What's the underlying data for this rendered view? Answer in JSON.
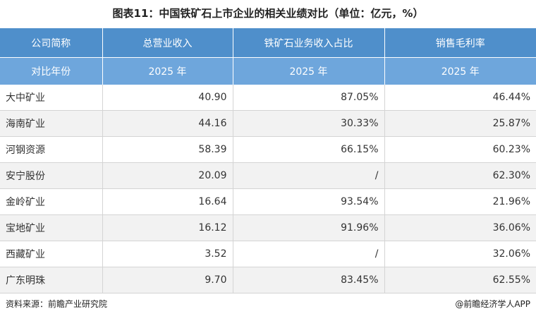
{
  "header": {
    "title": "图表11：中国铁矿石上市企业的相关业绩对比（单位：亿元，%）"
  },
  "table": {
    "columns": [
      "公司简称",
      "总营业收入",
      "铁矿石业务收入占比",
      "销售毛利率"
    ],
    "subheader": [
      "对比年份",
      "2025 年",
      "2025 年",
      "2025 年"
    ],
    "rows": [
      [
        "大中矿业",
        "40.90",
        "87.05%",
        "46.44%"
      ],
      [
        "海南矿业",
        "44.16",
        "30.33%",
        "25.87%"
      ],
      [
        "河钢资源",
        "58.39",
        "66.15%",
        "60.23%"
      ],
      [
        "安宁股份",
        "20.09",
        "/",
        "62.30%"
      ],
      [
        "金岭矿业",
        "16.64",
        "93.54%",
        "21.96%"
      ],
      [
        "宝地矿业",
        "16.12",
        "91.96%",
        "36.06%"
      ],
      [
        "西藏矿业",
        "3.52",
        "/",
        "32.06%"
      ],
      [
        "广东明珠",
        "9.70",
        "83.45%",
        "62.55%"
      ]
    ]
  },
  "footer": {
    "source": "资料来源：前瞻产业研究院",
    "credit": "@前瞻经济学人APP"
  }
}
